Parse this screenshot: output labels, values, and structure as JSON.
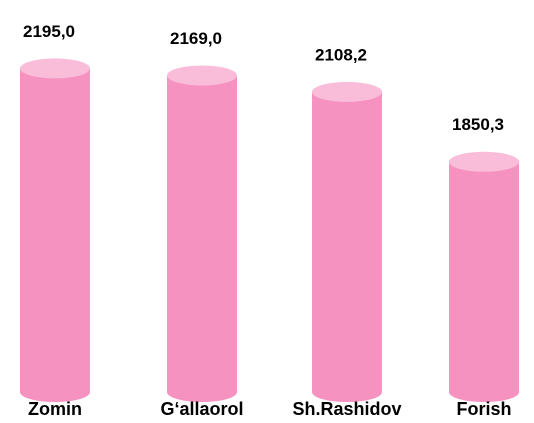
{
  "chart_data": {
    "type": "bar",
    "categories": [
      "Zomin",
      "G‘allaorol",
      "Sh.Rashidov",
      "Forish"
    ],
    "values": [
      2195.0,
      2169.0,
      2108.2,
      1850.3
    ],
    "value_labels": [
      "2195,0",
      "2169,0",
      "2108,2",
      "1850,3"
    ],
    "color": "#f592c0",
    "top_color": "#f9bdd9",
    "ylim": [
      1000,
      2300
    ]
  }
}
